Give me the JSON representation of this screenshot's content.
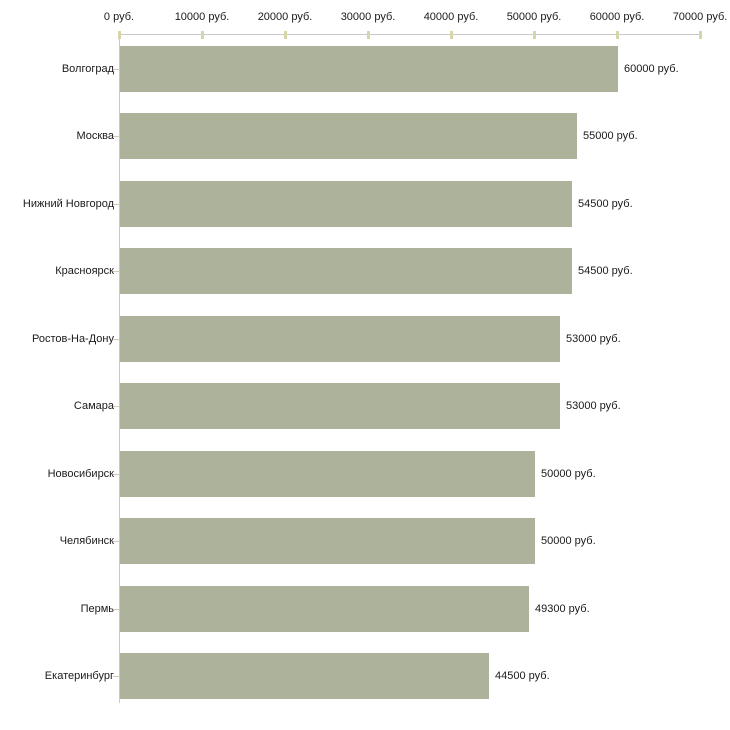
{
  "chart_data": {
    "type": "bar",
    "orientation": "horizontal",
    "title": "",
    "xlabel": "",
    "ylabel": "",
    "xlim": [
      0,
      70000
    ],
    "x_tick_labels": [
      "0 руб.",
      "10000 руб.",
      "20000 руб.",
      "30000 руб.",
      "40000 руб.",
      "50000 руб.",
      "60000 руб.",
      "70000 руб."
    ],
    "categories": [
      "Волгоград",
      "Москва",
      "Нижний Новгород",
      "Красноярск",
      "Ростов-На-Дону",
      "Самара",
      "Новосибирск",
      "Челябинск",
      "Пермь",
      "Екатеринбург"
    ],
    "values": [
      60000,
      55000,
      54500,
      54500,
      53000,
      53000,
      50000,
      50000,
      49300,
      44500
    ],
    "value_labels": [
      "60000 руб.",
      "55000 руб.",
      "54500 руб.",
      "54500 руб.",
      "53000 руб.",
      "53000 руб.",
      "50000 руб.",
      "50000 руб.",
      "49300 руб.",
      "44500 руб."
    ],
    "grid": false,
    "legend_position": "none",
    "colors": {
      "bar": "#adb29b",
      "axis_line": "#c9c9c9",
      "axis_tick": "#d6d6ab",
      "category_tick": "#cfccb2",
      "text": "#1a1a1a",
      "background": "#ffffff"
    }
  }
}
